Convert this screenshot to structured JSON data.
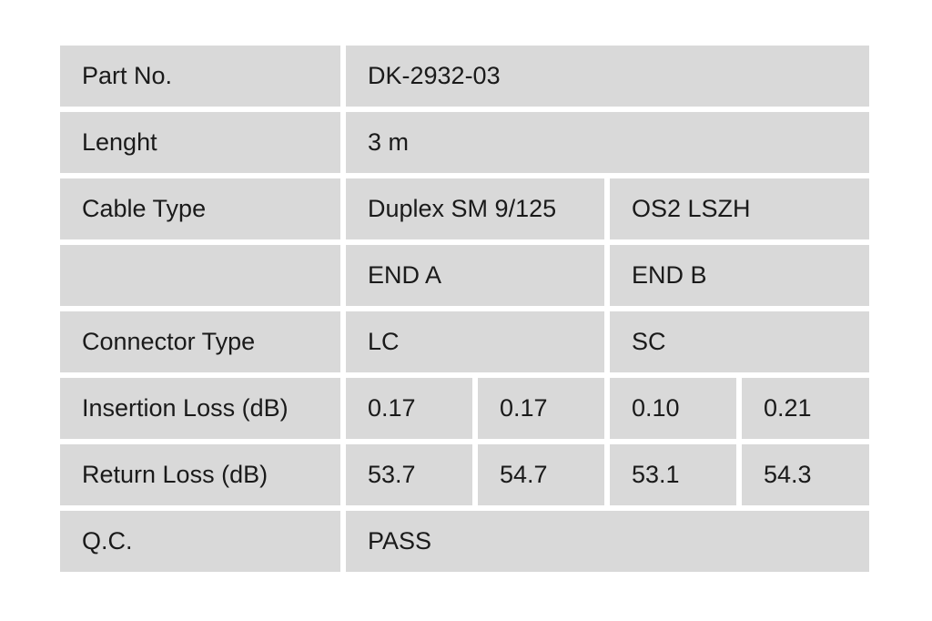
{
  "colors": {
    "cell_background": "#d9d9d9",
    "page_background": "#ffffff",
    "text": "#1a1a1a"
  },
  "table": {
    "part_no": {
      "label": "Part No.",
      "value": "DK-2932-03"
    },
    "length": {
      "label": "Lenght",
      "value": "3 m"
    },
    "cable_type": {
      "label": "Cable Type",
      "value_a": "Duplex SM 9/125",
      "value_b": "OS2 LSZH"
    },
    "ends": {
      "label": "",
      "end_a": "END A",
      "end_b": "END B"
    },
    "connector_type": {
      "label": "Connector Type",
      "end_a": "LC",
      "end_b": "SC"
    },
    "insertion_loss": {
      "label": "Insertion Loss (dB)",
      "values": [
        "0.17",
        "0.17",
        "0.10",
        "0.21"
      ]
    },
    "return_loss": {
      "label": "Return Loss (dB)",
      "values": [
        "53.7",
        "54.7",
        "53.1",
        "54.3"
      ]
    },
    "qc": {
      "label": "Q.C.",
      "value": "PASS"
    }
  }
}
